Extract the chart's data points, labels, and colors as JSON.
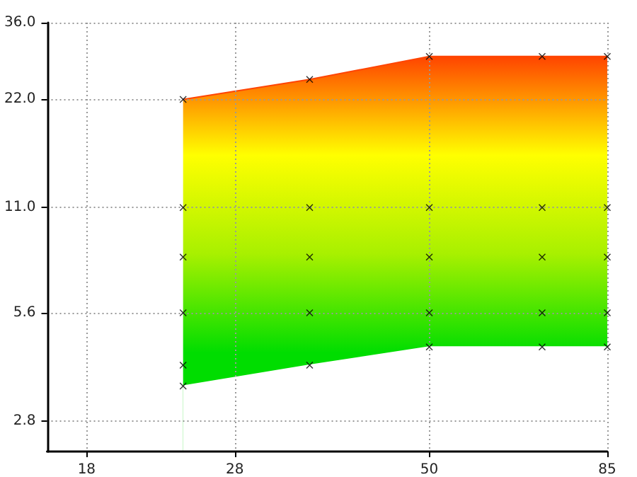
{
  "chart_data": {
    "type": "area",
    "series": [
      {
        "x": [
          24,
          35,
          50,
          70,
          85
        ],
        "values": [
          22,
          25,
          29,
          29,
          29
        ],
        "marker": "none",
        "colors": [
          "#00dd00",
          "#00dd00",
          "#a8f000",
          "#ffff00",
          "#ff4400"
        ]
      },
      {
        "x": [
          24,
          35,
          50,
          70,
          85
        ],
        "values": [
          3.5,
          4,
          4.5,
          4.5,
          4.5
        ],
        "marker": "none",
        "color": "#ffffff"
      },
      {
        "type": "scatter",
        "marker": "cross",
        "color": "#000000",
        "x": [
          24,
          24,
          24,
          24,
          24,
          24,
          35,
          35,
          35,
          35,
          35,
          50,
          50,
          50,
          50,
          50,
          70,
          70,
          70,
          70,
          70,
          85,
          85,
          85,
          85,
          85
        ],
        "values": [
          22,
          11,
          8,
          5.6,
          4,
          3.5,
          25,
          11,
          8,
          5.6,
          4,
          29,
          11,
          8,
          5.6,
          4.5,
          29,
          11,
          8,
          5.6,
          4.5,
          29,
          11,
          8,
          5.6,
          4.5
        ]
      }
    ],
    "log": "xy",
    "grid": true,
    "xlim": [
      16,
      85
    ],
    "xticks": [
      18,
      28,
      50,
      85
    ],
    "ylim": [
      2.3,
      36
    ],
    "yticks": [
      {
        "value": 2.8,
        "label": "2.8"
      },
      {
        "value": 5.6,
        "label": "5.6"
      },
      {
        "value": 11,
        "label": "11.0"
      },
      {
        "value": 22,
        "label": "22.0"
      },
      {
        "value": 36,
        "label": "36.0"
      }
    ]
  }
}
